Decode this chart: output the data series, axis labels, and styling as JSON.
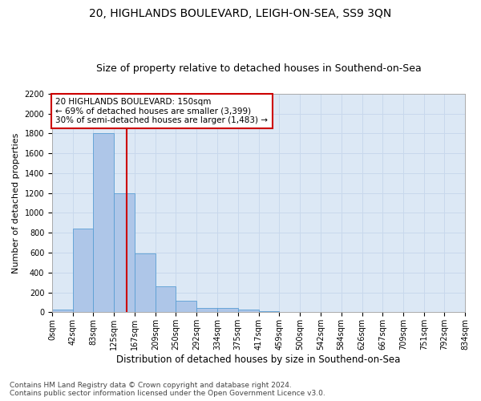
{
  "title1": "20, HIGHLANDS BOULEVARD, LEIGH-ON-SEA, SS9 3QN",
  "title2": "Size of property relative to detached houses in Southend-on-Sea",
  "xlabel": "Distribution of detached houses by size in Southend-on-Sea",
  "ylabel": "Number of detached properties",
  "footnote1": "Contains HM Land Registry data © Crown copyright and database right 2024.",
  "footnote2": "Contains public sector information licensed under the Open Government Licence v3.0.",
  "bar_heights": [
    25,
    840,
    1800,
    1200,
    590,
    260,
    120,
    45,
    45,
    30,
    15,
    0,
    0,
    0,
    0,
    0,
    0,
    0,
    0,
    0
  ],
  "bin_edges": [
    0,
    42,
    83,
    125,
    167,
    209,
    250,
    292,
    334,
    375,
    417,
    459,
    500,
    542,
    584,
    626,
    667,
    709,
    751,
    792,
    834
  ],
  "tick_labels": [
    "0sqm",
    "42sqm",
    "83sqm",
    "125sqm",
    "167sqm",
    "209sqm",
    "250sqm",
    "292sqm",
    "334sqm",
    "375sqm",
    "417sqm",
    "459sqm",
    "500sqm",
    "542sqm",
    "584sqm",
    "626sqm",
    "667sqm",
    "709sqm",
    "751sqm",
    "792sqm",
    "834sqm"
  ],
  "bar_color": "#aec6e8",
  "bar_edge_color": "#5a9fd4",
  "property_line_x": 150,
  "property_line_color": "#cc0000",
  "annotation_text": "20 HIGHLANDS BOULEVARD: 150sqm\n← 69% of detached houses are smaller (3,399)\n30% of semi-detached houses are larger (1,483) →",
  "annotation_box_color": "#cc0000",
  "ylim": [
    0,
    2200
  ],
  "yticks": [
    0,
    200,
    400,
    600,
    800,
    1000,
    1200,
    1400,
    1600,
    1800,
    2000,
    2200
  ],
  "grid_color": "#c8d8ec",
  "background_color": "#dce8f5",
  "title1_fontsize": 10,
  "title2_fontsize": 9,
  "xlabel_fontsize": 8.5,
  "ylabel_fontsize": 8,
  "footnote_fontsize": 6.5,
  "tick_fontsize": 7,
  "annotation_fontsize": 7.5
}
